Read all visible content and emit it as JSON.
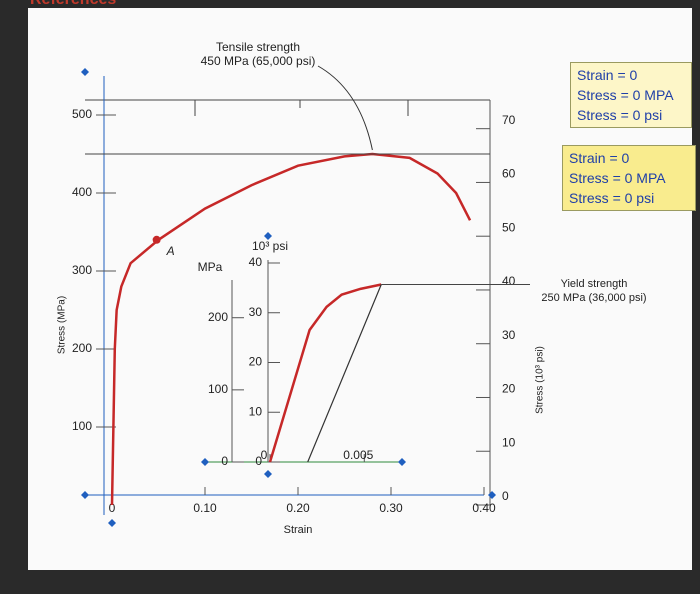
{
  "header": {
    "title": "References"
  },
  "readouts": [
    [
      "Strain = 0",
      "Stress = 0 MPA",
      "Stress = 0 psi"
    ],
    [
      "Strain = 0",
      "Stress = 0 MPA",
      "Stress = 0 psi"
    ]
  ],
  "chart_data": [
    {
      "type": "line",
      "xlabel": "Strain",
      "ylabel": "Stress (MPa)",
      "y2label": "Stress (10³ psi)",
      "color": "#c62828",
      "x": [
        0,
        0.003,
        0.005,
        0.01,
        0.02,
        0.05,
        0.1,
        0.15,
        0.2,
        0.25,
        0.28,
        0.32,
        0.35,
        0.37,
        0.385
      ],
      "values": [
        0,
        200,
        250,
        280,
        310,
        340,
        380,
        410,
        435,
        447,
        450,
        445,
        425,
        400,
        365
      ],
      "xlim": [
        0,
        0.4
      ],
      "ylim": [
        0,
        550
      ],
      "y2lim": [
        0,
        79.8
      ],
      "xticks": [
        0,
        {
          "value": 0.1,
          "label": "0.10"
        },
        {
          "value": 0.2,
          "label": "0.20"
        },
        {
          "value": 0.3,
          "label": "0.30"
        },
        {
          "value": 0.4,
          "label": "0.40"
        }
      ],
      "yticks": [
        100,
        200,
        300,
        400,
        500
      ],
      "y2ticks": [
        0,
        10,
        20,
        30,
        40,
        50,
        60,
        70
      ],
      "point": {
        "label": "A",
        "x": 0.048,
        "y": 340
      },
      "annotation": {
        "lines": [
          "Tensile strength",
          "450 MPa (65,000 psi)"
        ],
        "x": 0.28,
        "y": 450
      }
    },
    {
      "type": "line",
      "ylabel": "MPa",
      "y2label": "10³ psi",
      "color": "#c62828",
      "x": [
        0,
        0.0021,
        0.003,
        0.0038,
        0.0048,
        0.0059
      ],
      "values": [
        0,
        183,
        215,
        232,
        240,
        246
      ],
      "offset_line": {
        "x": [
          0.002,
          0.0059
        ],
        "values": [
          0,
          246
        ]
      },
      "xlim": [
        0,
        0.007
      ],
      "ylim": [
        0,
        280
      ],
      "y2lim": [
        0,
        40.6
      ],
      "xticks": [
        0,
        0.005
      ],
      "yticks": [
        0,
        100,
        200
      ],
      "y2ticks": [
        0,
        10,
        20,
        30,
        40
      ],
      "annotation": {
        "lines": [
          "Yield strength",
          "250 MPa (36,000 psi)"
        ],
        "x": 0.0059,
        "y": 246
      }
    }
  ]
}
